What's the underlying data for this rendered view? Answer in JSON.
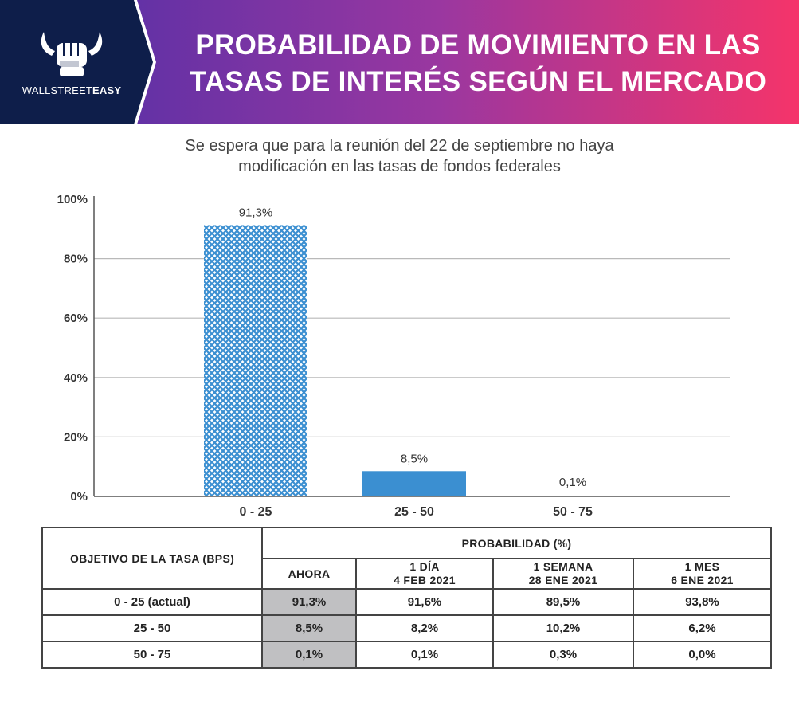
{
  "header": {
    "brand_prefix": "WALLSTREET",
    "brand_suffix": "EASY",
    "title_line1": "PROBABILIDAD DE MOVIMIENTO EN LAS",
    "title_line2": "TASAS DE INTERÉS SEGÚN EL MERCADO"
  },
  "subtitle_line1": "Se espera que para la reunión del 22 de septiembre no haya",
  "subtitle_line2": "modificación en las tasas de fondos federales",
  "colors": {
    "navy": "#0e1e4a",
    "gradient_start": "#4b2fa8",
    "gradient_end": "#f5346a",
    "bar_blue": "#3b8fd1",
    "shade": "#c0c0c2"
  },
  "chart_data": {
    "type": "bar",
    "categories": [
      "0 - 25",
      "25 - 50",
      "50 - 75"
    ],
    "values": [
      91.3,
      8.5,
      0.1
    ],
    "labels": [
      "91,3%",
      "8,5%",
      "0,1%"
    ],
    "patterns": [
      "crosshatch",
      "solid",
      "solid"
    ],
    "title": "Se espera que para la reunión del 22 de septiembre no haya modificación en las tasas de fondos federales",
    "xlabel": "",
    "ylabel": "",
    "ylim": [
      0,
      100
    ],
    "yticks": [
      0,
      20,
      40,
      60,
      80,
      100
    ],
    "ytick_labels": [
      "0%",
      "20%",
      "40%",
      "60%",
      "80%",
      "100%"
    ],
    "grid": true
  },
  "table": {
    "col0_header": "OBJETIVO DE LA TASA (BPS)",
    "group_header": "PROBABILIDAD (%)",
    "sub_headers": [
      {
        "line1": "AHORA",
        "line2": ""
      },
      {
        "line1": "1 DÍA",
        "line2": "4 FEB 2021"
      },
      {
        "line1": "1 SEMANA",
        "line2": "28 ENE 2021"
      },
      {
        "line1": "1 MES",
        "line2": "6 ENE 2021"
      }
    ],
    "rows": [
      {
        "target": "0 - 25 (actual)",
        "values": [
          "91,3%",
          "91,6%",
          "89,5%",
          "93,8%"
        ]
      },
      {
        "target": "25 - 50",
        "values": [
          "8,5%",
          "8,2%",
          "10,2%",
          "6,2%"
        ]
      },
      {
        "target": "50 - 75",
        "values": [
          "0,1%",
          "0,1%",
          "0,3%",
          "0,0%"
        ]
      }
    ]
  }
}
